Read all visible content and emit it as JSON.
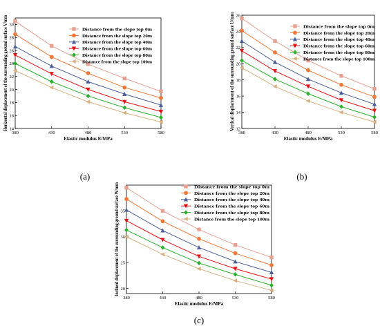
{
  "chart_data": [
    {
      "type": "line",
      "panel_label": "(a)",
      "xlabel": "Elastic modulus E/MPa",
      "ylabel": "Horizontal displacement of the surrounding ground surface V/mm",
      "x": [
        380,
        430,
        480,
        530,
        580
      ],
      "xlim": [
        380,
        580
      ],
      "ylim": [
        14,
        31
      ],
      "yticks": [
        14,
        16,
        18,
        20,
        22,
        24,
        26,
        28,
        30
      ],
      "series": [
        {
          "name": "Distance from the slope top 0m",
          "values": [
            30.5,
            26.7,
            23.9,
            21.7,
            19.7
          ],
          "color": "#e8a090",
          "marker": "square"
        },
        {
          "name": "Distance from the slope top 20m",
          "values": [
            28.5,
            25.0,
            22.5,
            20.3,
            18.7
          ],
          "color": "#f07838",
          "marker": "circle"
        },
        {
          "name": "Distance from the slope top 40m",
          "values": [
            26.6,
            23.6,
            21.2,
            19.3,
            17.6
          ],
          "color": "#4a5f9a",
          "marker": "triangle-up"
        },
        {
          "name": "Distance from the slope top 60m",
          "values": [
            25.3,
            22.4,
            20.0,
            18.1,
            16.6
          ],
          "color": "#e81010",
          "marker": "triangle-down"
        },
        {
          "name": "Distance from the slope top 80m",
          "values": [
            24.0,
            21.2,
            19.0,
            17.2,
            15.7
          ],
          "color": "#28b028",
          "marker": "diamond"
        },
        {
          "name": "Distance from the slope top 100m",
          "values": [
            22.9,
            20.3,
            18.1,
            16.4,
            15.0
          ],
          "color": "#d8b080",
          "marker": "triangle-left"
        }
      ]
    },
    {
      "type": "line",
      "panel_label": "(b)",
      "xlabel": "Elastic modulus E/MPa",
      "ylabel": "Vertical displacement of the surrounding ground surface U/mm",
      "x": [
        380,
        430,
        480,
        530,
        580
      ],
      "xlim": [
        380,
        580
      ],
      "ylim": [
        12,
        26
      ],
      "yticks": [
        12,
        14,
        16,
        18,
        20,
        22,
        24,
        26
      ],
      "series": [
        {
          "name": "Distance from the slope top 0m",
          "values": [
            25.6,
            22.8,
            20.4,
            18.5,
            16.9
          ],
          "color": "#e8a090",
          "marker": "square"
        },
        {
          "name": "Distance from the slope top 20m",
          "values": [
            24.1,
            21.4,
            19.2,
            17.4,
            15.9
          ],
          "color": "#f07838",
          "marker": "circle"
        },
        {
          "name": "Distance from the slope top 40m",
          "values": [
            22.8,
            20.2,
            18.1,
            16.4,
            15.0
          ],
          "color": "#4a5f9a",
          "marker": "triangle-up"
        },
        {
          "name": "Distance from the slope top 60m",
          "values": [
            21.6,
            19.1,
            17.2,
            15.5,
            14.2
          ],
          "color": "#e81010",
          "marker": "triangle-down"
        },
        {
          "name": "Distance from the slope top 80m",
          "values": [
            20.4,
            18.1,
            16.3,
            14.7,
            13.4
          ],
          "color": "#28b028",
          "marker": "diamond"
        },
        {
          "name": "Distance from the slope top 100m",
          "values": [
            19.5,
            17.2,
            15.4,
            14.0,
            12.8
          ],
          "color": "#d8b080",
          "marker": "triangle-left"
        }
      ]
    },
    {
      "type": "line",
      "panel_label": "(c)",
      "xlabel": "Elastic modulus E/MPa",
      "ylabel": "Inclined displacement of the surrounding ground surface W/mm",
      "x": [
        380,
        430,
        480,
        530,
        580
      ],
      "xlim": [
        380,
        580
      ],
      "ylim": [
        19,
        40
      ],
      "yticks": [
        20,
        25,
        30,
        35
      ],
      "series": [
        {
          "name": "Distance from the slope top 0m",
          "values": [
            39.5,
            35.0,
            31.4,
            28.4,
            26.0
          ],
          "color": "#e8a090",
          "marker": "square"
        },
        {
          "name": "Distance from the slope top 20m",
          "values": [
            37.3,
            33.0,
            29.6,
            26.8,
            24.5
          ],
          "color": "#f07838",
          "marker": "circle"
        },
        {
          "name": "Distance from the slope top 40m",
          "values": [
            35.2,
            31.2,
            27.9,
            25.2,
            23.1
          ],
          "color": "#4a5f9a",
          "marker": "triangle-up"
        },
        {
          "name": "Distance from the slope top 60m",
          "values": [
            33.1,
            29.4,
            26.2,
            23.8,
            21.8
          ],
          "color": "#e81010",
          "marker": "triangle-down"
        },
        {
          "name": "Distance from the slope top 80m",
          "values": [
            31.3,
            27.9,
            24.9,
            22.7,
            20.6
          ],
          "color": "#28b028",
          "marker": "diamond"
        },
        {
          "name": "Distance from the slope top 100m",
          "values": [
            30.0,
            26.6,
            23.8,
            21.5,
            19.6
          ],
          "color": "#d8b080",
          "marker": "triangle-left"
        }
      ]
    }
  ]
}
